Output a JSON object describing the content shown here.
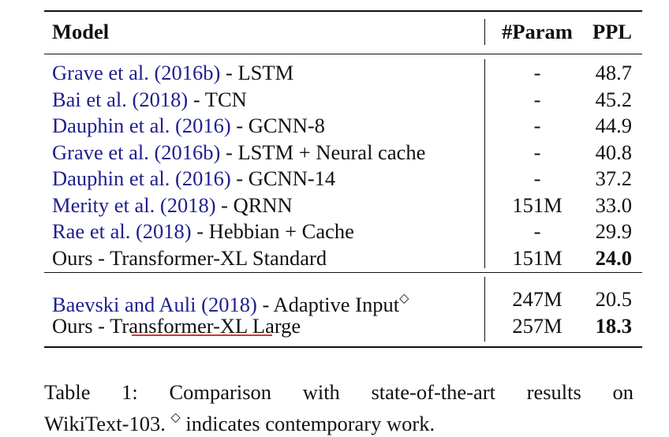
{
  "table": {
    "headers": {
      "model": "Model",
      "param": "#Param",
      "ppl": "PPL"
    },
    "rows": [
      {
        "cite": "Grave et al. (2016b)",
        "rest": " - LSTM",
        "param": "-",
        "ppl": "48.7",
        "bold_ppl": false
      },
      {
        "cite": "Bai et al. (2018)",
        "rest": " - TCN",
        "param": "-",
        "ppl": "45.2",
        "bold_ppl": false
      },
      {
        "cite": "Dauphin et al. (2016)",
        "rest": " - GCNN-8",
        "param": "-",
        "ppl": "44.9",
        "bold_ppl": false
      },
      {
        "cite": "Grave et al. (2016b)",
        "rest": " - LSTM + Neural cache",
        "param": "-",
        "ppl": "40.8",
        "bold_ppl": false
      },
      {
        "cite": "Dauphin et al. (2016)",
        "rest": " - GCNN-14",
        "param": "-",
        "ppl": "37.2",
        "bold_ppl": false
      },
      {
        "cite": "Merity et al. (2018)",
        "rest": " - QRNN",
        "param": "151M",
        "ppl": "33.0",
        "bold_ppl": false
      },
      {
        "cite": "Rae et al. (2018)",
        "rest": " - Hebbian + Cache",
        "param": "-",
        "ppl": "29.9",
        "bold_ppl": false
      },
      {
        "plain": "Ours - Transformer-XL Standard",
        "param": "151M",
        "ppl": "24.0",
        "bold_ppl": true
      }
    ],
    "rows2": [
      {
        "cite": "Baevski and Auli (2018)",
        "rest": " - Adaptive Input",
        "sup": "◇",
        "param": "247M",
        "ppl": "20.5",
        "bold_ppl": false
      },
      {
        "pre": "Ours - ",
        "xl": "Transformer-XL",
        "post": " Large",
        "param": "257M",
        "ppl": "18.3",
        "bold_ppl": true
      }
    ]
  },
  "caption": {
    "line1": "Table 1: Comparison with state-of-the-art results on",
    "line2_pre": "WikiText-103. ",
    "line2_sup": "◇",
    "line2_post": " indicates contemporary work."
  },
  "colors": {
    "citation": "#1f1f8f",
    "underline": "#e03030"
  }
}
